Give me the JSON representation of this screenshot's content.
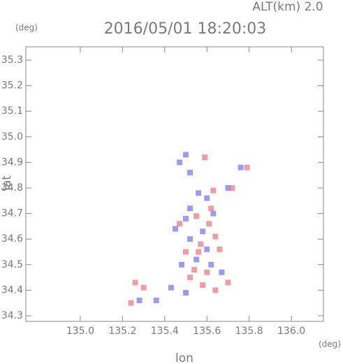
{
  "chart_data": {
    "type": "scatter",
    "title": "2016/05/01 18:20:03",
    "subtitle": "ALT(km) 2.0",
    "x_label": "lon",
    "y_label": "lat",
    "x_unit": "(deg)",
    "y_unit": "(deg)",
    "xlim": [
      134.742,
      136.152
    ],
    "ylim": [
      34.278,
      35.352
    ],
    "xticks": [
      {
        "value": 135.0,
        "label": "135.0"
      },
      135.2,
      135.4,
      135.6,
      135.8,
      {
        "value": 136.0,
        "label": "136.0"
      }
    ],
    "yticks": [
      34.3,
      34.4,
      34.5,
      34.6,
      34.7,
      34.8,
      34.9,
      {
        "value": 35.0,
        "label": "35.0"
      },
      35.1,
      35.2,
      35.3
    ],
    "series": [
      {
        "color": "#7b7bea",
        "x": [
          135.5,
          135.47,
          135.52,
          135.56,
          135.76,
          135.5,
          135.45,
          135.52,
          135.6,
          135.63,
          135.48,
          135.55,
          135.43,
          135.36,
          135.28,
          135.67,
          135.58,
          135.52,
          135.62,
          135.5,
          135.6,
          135.7
        ],
        "y": [
          34.93,
          34.9,
          34.86,
          34.78,
          34.88,
          34.68,
          34.64,
          34.6,
          34.56,
          34.7,
          34.5,
          34.52,
          34.41,
          34.36,
          34.36,
          34.47,
          34.63,
          34.72,
          34.5,
          34.39,
          34.76,
          34.8
        ]
      },
      {
        "color": "#ea7b83",
        "x": [
          135.59,
          135.79,
          135.63,
          135.55,
          135.61,
          135.64,
          135.57,
          135.6,
          135.52,
          135.58,
          135.64,
          135.7,
          135.26,
          135.24,
          135.3,
          135.56,
          135.5,
          135.66,
          135.47,
          135.72,
          135.54,
          135.62
        ],
        "y": [
          34.92,
          34.88,
          34.79,
          34.69,
          34.66,
          34.61,
          34.58,
          34.47,
          34.45,
          34.42,
          34.4,
          34.43,
          34.43,
          34.35,
          34.41,
          34.55,
          34.55,
          34.56,
          34.66,
          34.8,
          34.48,
          34.72
        ]
      }
    ]
  }
}
